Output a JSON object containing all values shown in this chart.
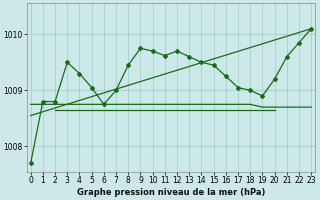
{
  "title": "Graphe pression niveau de la mer (hPa)",
  "bg_color": "#cce8e8",
  "grid_color": "#99cccc",
  "line_color": "#1a6b1a",
  "x_ticks": [
    0,
    1,
    2,
    3,
    4,
    5,
    6,
    7,
    8,
    9,
    10,
    11,
    12,
    13,
    14,
    15,
    16,
    17,
    18,
    19,
    20,
    21,
    22,
    23
  ],
  "y_ticks": [
    1008,
    1009,
    1010
  ],
  "ylim": [
    1007.55,
    1010.55
  ],
  "xlim": [
    -0.3,
    23.3
  ],
  "series_main": {
    "x": [
      0,
      1,
      2,
      3,
      4,
      5,
      6,
      7,
      8,
      9,
      10,
      11,
      12,
      13,
      14,
      15,
      16,
      17,
      18,
      19,
      20,
      21,
      22,
      23
    ],
    "y": [
      1007.7,
      1008.8,
      1008.8,
      1009.5,
      1009.3,
      1009.05,
      1008.75,
      1009.0,
      1009.45,
      1009.75,
      1009.7,
      1009.62,
      1009.7,
      1009.6,
      1009.5,
      1009.45,
      1009.25,
      1009.05,
      1009.0,
      1008.9,
      1009.2,
      1009.6,
      1009.85,
      1010.1
    ]
  },
  "series_flat_top": {
    "x": [
      0,
      1,
      2,
      3,
      4,
      5,
      6,
      7,
      8,
      9,
      10,
      11,
      12,
      13,
      14,
      15,
      16,
      17,
      18,
      19,
      20,
      21,
      22,
      23
    ],
    "y": [
      1008.75,
      1008.75,
      1008.75,
      1008.75,
      1008.75,
      1008.75,
      1008.75,
      1008.75,
      1008.75,
      1008.75,
      1008.75,
      1008.75,
      1008.75,
      1008.75,
      1008.75,
      1008.75,
      1008.75,
      1008.75,
      1008.75,
      1008.7,
      1008.7,
      1008.7,
      1008.7,
      1008.7
    ]
  },
  "series_flat_bottom": {
    "x": [
      2,
      3,
      4,
      5,
      6,
      7,
      8,
      9,
      10,
      11,
      12,
      13,
      14,
      15,
      16,
      17,
      18,
      19,
      20
    ],
    "y": [
      1008.65,
      1008.65,
      1008.65,
      1008.65,
      1008.65,
      1008.65,
      1008.65,
      1008.65,
      1008.65,
      1008.65,
      1008.65,
      1008.65,
      1008.65,
      1008.65,
      1008.65,
      1008.65,
      1008.65,
      1008.65,
      1008.65
    ]
  },
  "series_diagonal": {
    "x": [
      0,
      23
    ],
    "y": [
      1008.55,
      1010.1
    ]
  }
}
